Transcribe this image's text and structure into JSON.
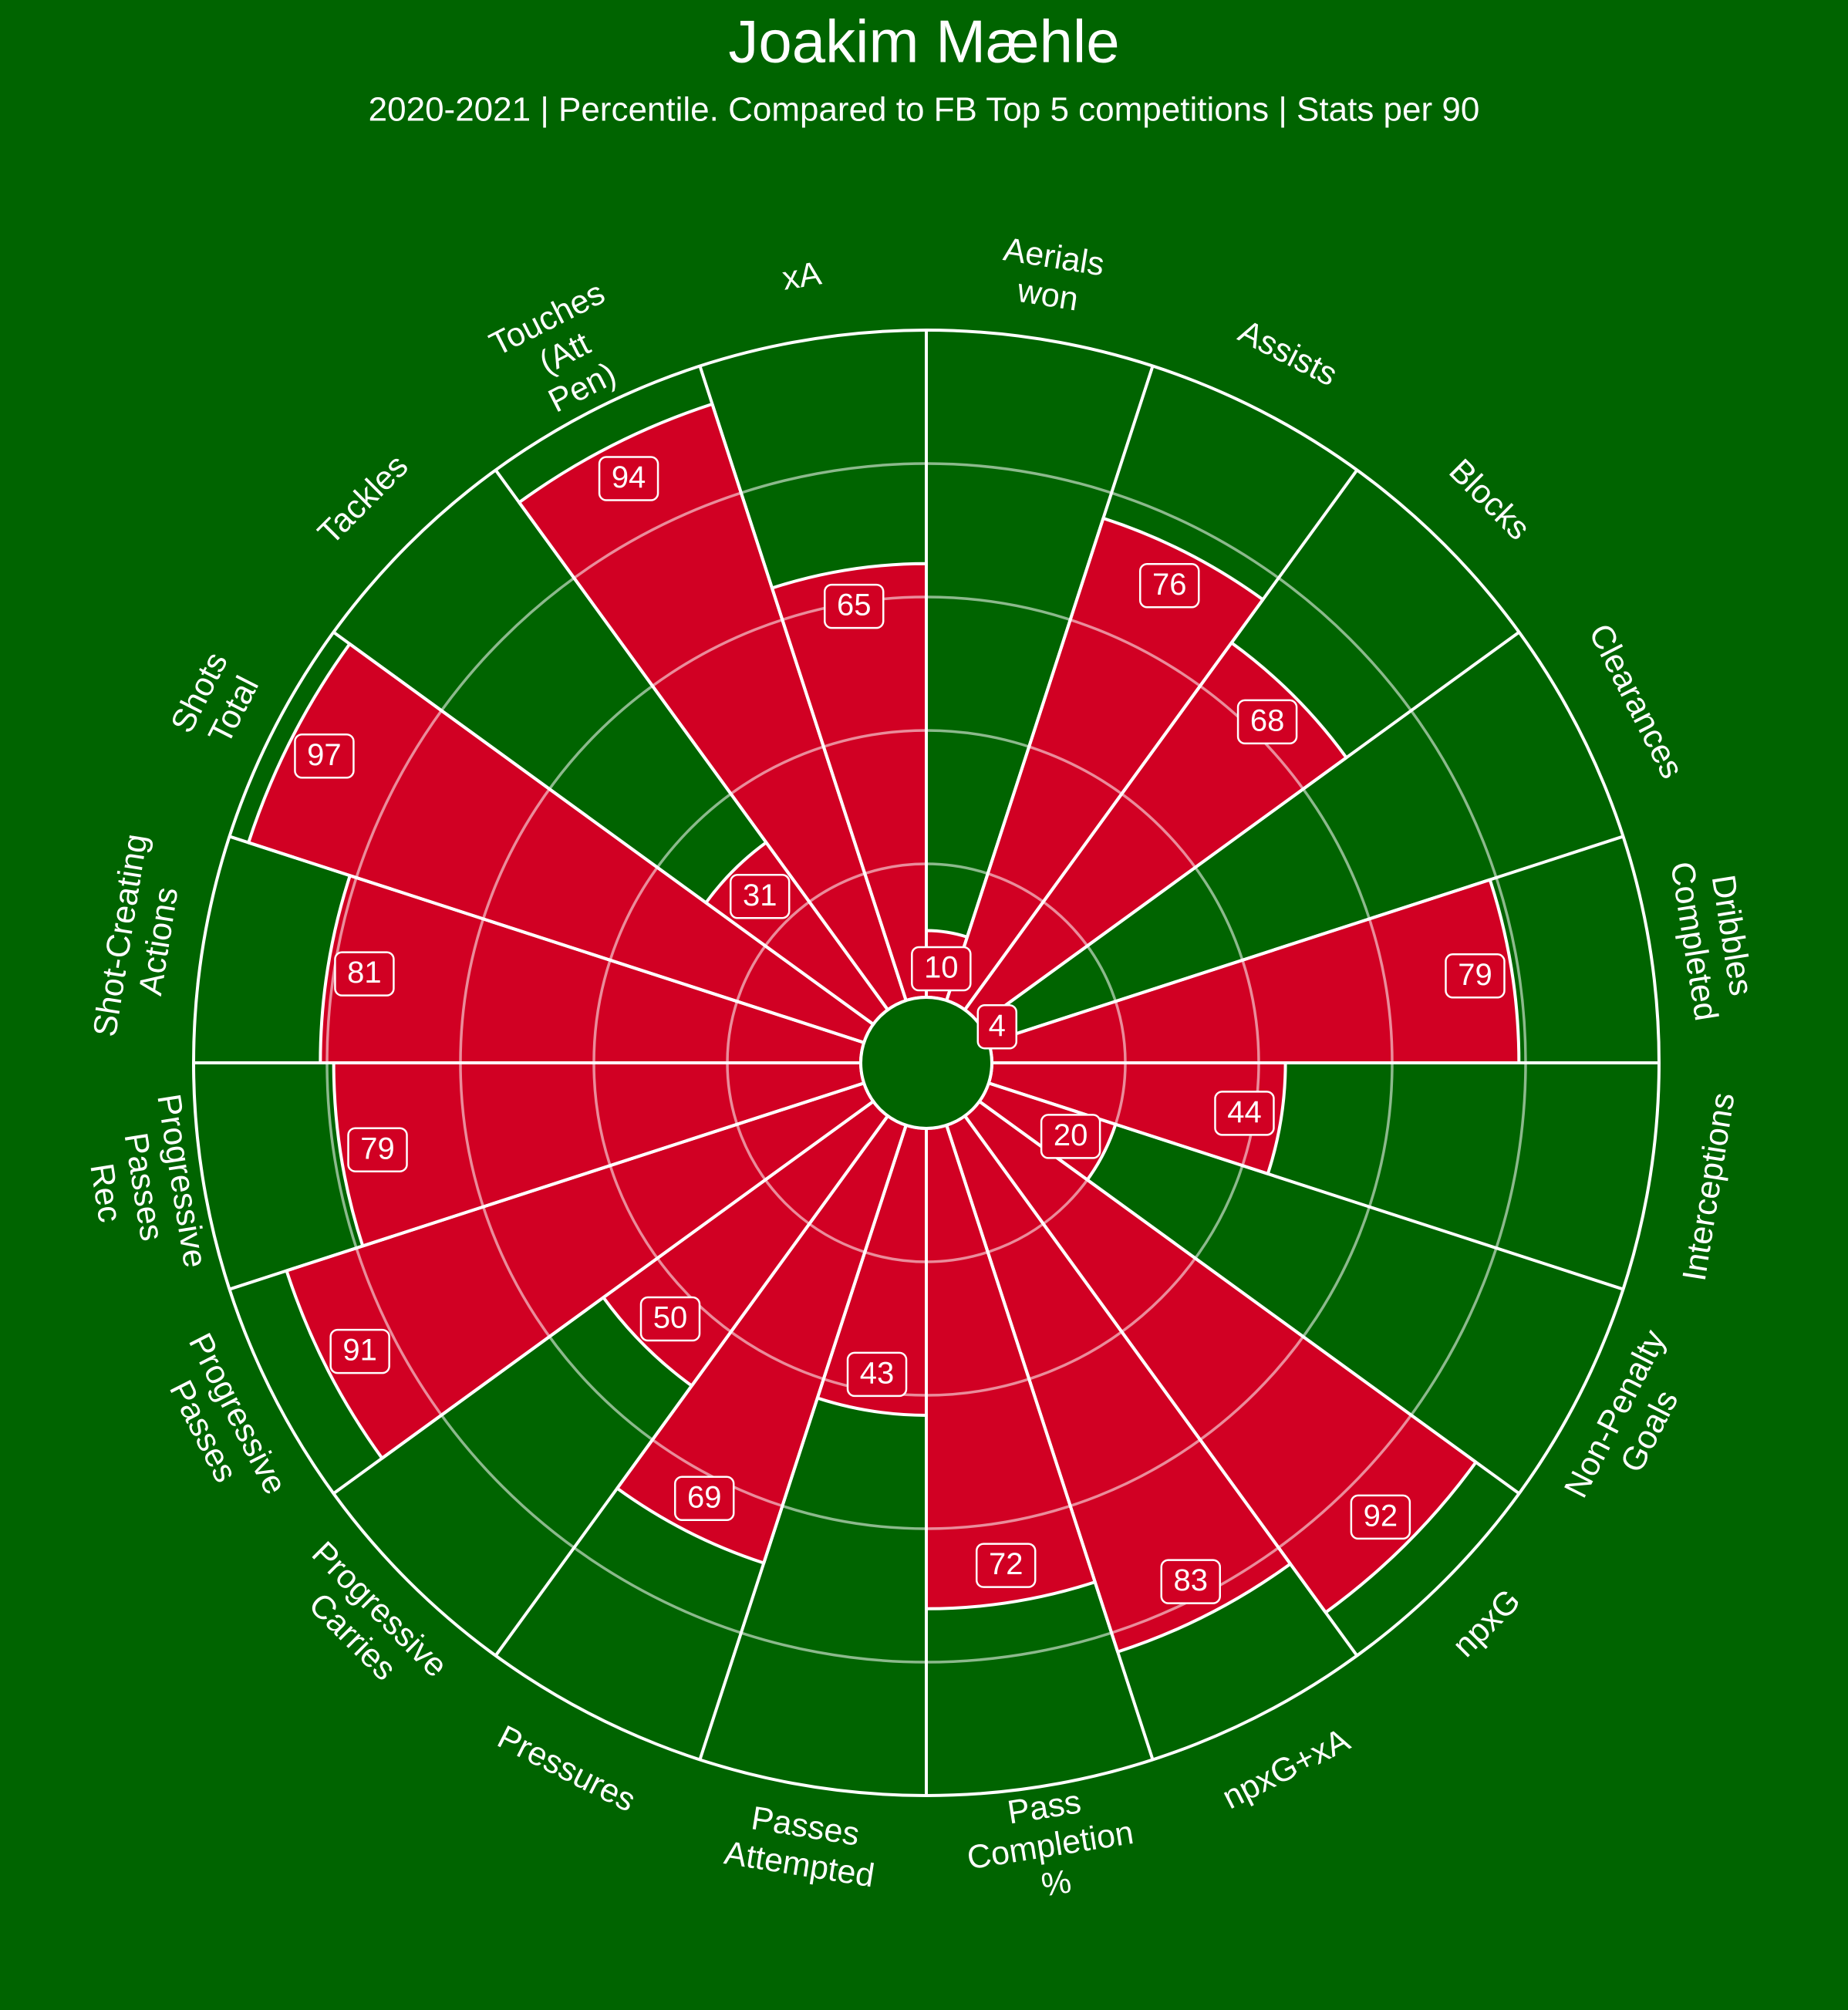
{
  "title": "Joakim Mæhle",
  "subtitle": "2020-2021 | Percentile. Compared to FB Top 5 competitions | Stats per 90",
  "colors": {
    "background": "#006400",
    "bar": "#D10023",
    "stroke": "#FFFFFF",
    "text": "#FFFFFF"
  },
  "chart_data": {
    "type": "radial-bar",
    "scale": [
      0,
      100
    ],
    "gridlines": [
      20,
      40,
      60,
      80
    ],
    "categories": [
      "Aerials won",
      "Assists",
      "Blocks",
      "Clearances",
      "Dribbles Completed",
      "Interceptions",
      "Non-Penalty Goals",
      "npxG",
      "npxG+xA",
      "Pass Completion %",
      "Passes Attempted",
      "Pressures",
      "Progressive Carries",
      "Progressive Passes",
      "Progressive Passes Rec",
      "Shot-Creating Actions",
      "Shots Total",
      "Tackles",
      "Touches (Att Pen)",
      "xA"
    ],
    "category_lines": [
      [
        "Aerials",
        "won"
      ],
      [
        "Assists"
      ],
      [
        "Blocks"
      ],
      [
        "Clearances"
      ],
      [
        "Dribbles",
        "Completed"
      ],
      [
        "Interceptions"
      ],
      [
        "Non-Penalty",
        "Goals"
      ],
      [
        "npxG"
      ],
      [
        "npxG+xA"
      ],
      [
        "Pass",
        "Completion",
        "%"
      ],
      [
        "Passes",
        "Attempted"
      ],
      [
        "Pressures"
      ],
      [
        "Progressive",
        "Carries"
      ],
      [
        "Progressive",
        "Passes"
      ],
      [
        "Progressive",
        "Passes",
        "Rec"
      ],
      [
        "Shot-Creating",
        "Actions"
      ],
      [
        "Shots",
        "Total"
      ],
      [
        "Tackles"
      ],
      [
        "Touches",
        "(Att",
        "Pen)"
      ],
      [
        "xA"
      ]
    ],
    "values": [
      10,
      76,
      68,
      4,
      79,
      44,
      20,
      92,
      83,
      72,
      43,
      69,
      50,
      91,
      79,
      81,
      97,
      31,
      94,
      65
    ],
    "value_labels": [
      "10",
      "76",
      "68",
      "4",
      "79",
      "44",
      "20",
      "92",
      "83",
      "72",
      "43",
      "69",
      "50",
      "91",
      "79",
      "81",
      "97",
      "31",
      "94",
      "65"
    ]
  }
}
